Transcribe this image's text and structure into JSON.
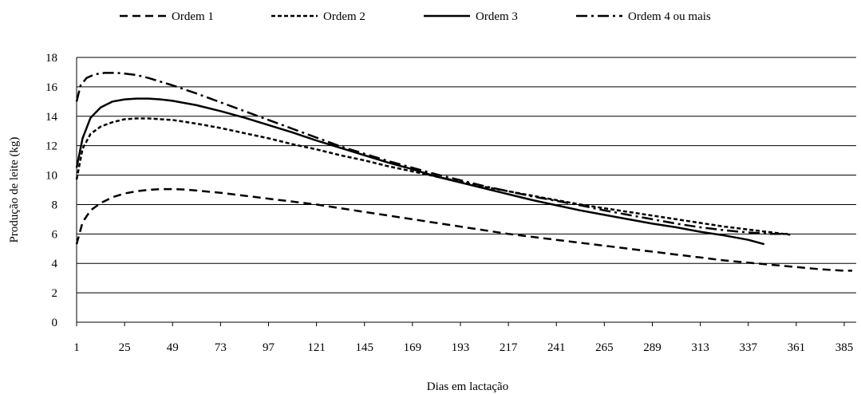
{
  "chart_data": {
    "type": "line",
    "xlabel": "Dias em lactação",
    "ylabel": "Produção de leite (kg)",
    "x_ticks": [
      1,
      25,
      49,
      73,
      97,
      121,
      145,
      169,
      193,
      217,
      241,
      265,
      289,
      313,
      337,
      361,
      385
    ],
    "y_ticks": [
      0,
      2,
      4,
      6,
      8,
      10,
      12,
      14,
      16,
      18
    ],
    "xlim": [
      1,
      391
    ],
    "ylim": [
      0,
      18
    ],
    "grid": "horizontal",
    "legend_position": "top",
    "series": [
      {
        "name": "Ordem 1",
        "dash": "dash",
        "x": [
          1,
          4,
          8,
          13,
          19,
          25,
          31,
          37,
          43,
          49,
          55,
          61,
          73,
          85,
          97,
          109,
          121,
          133,
          145,
          157,
          169,
          181,
          193,
          205,
          217,
          229,
          241,
          253,
          265,
          277,
          289,
          301,
          313,
          325,
          337,
          349,
          361,
          373,
          385,
          389
        ],
        "y": [
          5.3,
          6.8,
          7.6,
          8.1,
          8.5,
          8.75,
          8.9,
          9.0,
          9.05,
          9.05,
          9.02,
          8.95,
          8.8,
          8.6,
          8.4,
          8.2,
          8.0,
          7.75,
          7.5,
          7.25,
          7.0,
          6.75,
          6.5,
          6.25,
          6.0,
          5.8,
          5.6,
          5.4,
          5.2,
          5.0,
          4.8,
          4.6,
          4.4,
          4.2,
          4.05,
          3.9,
          3.75,
          3.6,
          3.5,
          3.5
        ]
      },
      {
        "name": "Ordem 2",
        "dash": "short",
        "x": [
          1,
          4,
          8,
          13,
          19,
          25,
          31,
          37,
          43,
          49,
          61,
          73,
          85,
          97,
          109,
          121,
          133,
          145,
          157,
          169,
          181,
          193,
          205,
          217,
          229,
          241,
          253,
          265,
          277,
          289,
          301,
          313,
          325,
          337,
          349,
          358
        ],
        "y": [
          9.7,
          11.8,
          12.8,
          13.3,
          13.6,
          13.8,
          13.85,
          13.85,
          13.8,
          13.75,
          13.5,
          13.2,
          12.85,
          12.5,
          12.1,
          11.75,
          11.35,
          11.0,
          10.6,
          10.25,
          9.9,
          9.55,
          9.2,
          8.9,
          8.6,
          8.3,
          8.0,
          7.75,
          7.5,
          7.25,
          7.0,
          6.75,
          6.5,
          6.3,
          6.1,
          5.95
        ]
      },
      {
        "name": "Ordem 3",
        "dash": "solid",
        "x": [
          1,
          4,
          8,
          13,
          19,
          25,
          31,
          37,
          43,
          49,
          61,
          73,
          85,
          97,
          109,
          121,
          133,
          145,
          157,
          169,
          181,
          193,
          205,
          217,
          229,
          241,
          253,
          265,
          277,
          289,
          301,
          313,
          325,
          337,
          345
        ],
        "y": [
          10.5,
          12.5,
          13.9,
          14.6,
          15.0,
          15.15,
          15.2,
          15.2,
          15.15,
          15.05,
          14.75,
          14.35,
          13.9,
          13.4,
          12.9,
          12.35,
          11.85,
          11.35,
          10.85,
          10.4,
          9.9,
          9.5,
          9.1,
          8.7,
          8.3,
          7.95,
          7.6,
          7.3,
          7.0,
          6.7,
          6.45,
          6.15,
          5.9,
          5.6,
          5.3
        ]
      },
      {
        "name": "Ordem 4 ou mais",
        "dash": "dashdot",
        "x": [
          1,
          3,
          6,
          10,
          15,
          21,
          25,
          31,
          37,
          43,
          49,
          61,
          73,
          85,
          97,
          109,
          121,
          133,
          145,
          157,
          169,
          181,
          193,
          205,
          217,
          229,
          241,
          253,
          265,
          277,
          289,
          301,
          313,
          325,
          337,
          349,
          358
        ],
        "y": [
          15.0,
          16.1,
          16.6,
          16.85,
          16.95,
          16.95,
          16.9,
          16.8,
          16.6,
          16.35,
          16.1,
          15.55,
          14.95,
          14.35,
          13.75,
          13.15,
          12.55,
          11.95,
          11.45,
          10.95,
          10.5,
          10.05,
          9.65,
          9.25,
          8.9,
          8.55,
          8.25,
          7.95,
          7.6,
          7.3,
          7.0,
          6.7,
          6.45,
          6.25,
          6.1,
          6.0,
          6.0
        ]
      }
    ]
  }
}
